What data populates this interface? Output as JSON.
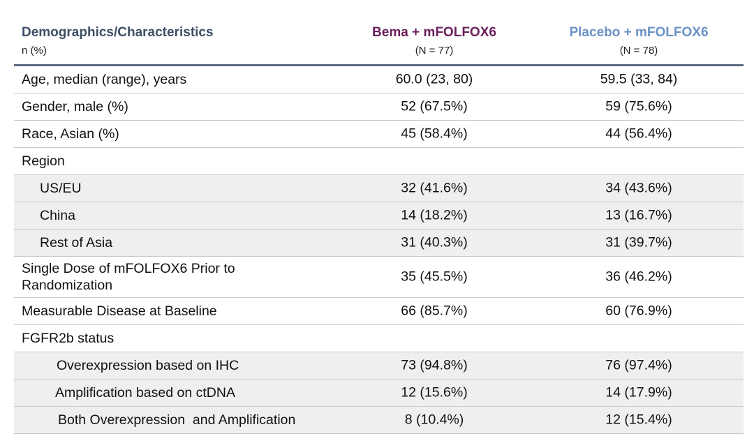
{
  "header": {
    "title": "Demographics/Characteristics",
    "subtitle": "n (%)",
    "col1_name": "Bema + mFOLFOX6",
    "col1_n": "(N = 77)",
    "col2_name": "Placebo + mFOLFOX6",
    "col2_n": "(N = 78)"
  },
  "colors": {
    "header_text": "#3d4f66",
    "bema_accent": "#6b1f5c",
    "placebo_accent": "#6a92c8",
    "header_rule": "#5b6b7e",
    "row_shade": "#efefef"
  },
  "rows": [
    {
      "label": "Age, median (range), years",
      "bema": "60.0 (23, 80)",
      "placebo": "59.5 (33, 84)"
    },
    {
      "label": "Gender, male (%)",
      "bema": "52 (67.5%)",
      "placebo": "59 (75.6%)"
    },
    {
      "label": "Race, Asian (%)",
      "bema": "45 (58.4%)",
      "placebo": "44 (56.4%)"
    },
    {
      "label": "Region",
      "bema": "",
      "placebo": ""
    },
    {
      "label": "US/EU",
      "bema": "32 (41.6%)",
      "placebo": "34 (43.6%)"
    },
    {
      "label": "China",
      "bema": "14 (18.2%)",
      "placebo": "13 (16.7%)"
    },
    {
      "label": "Rest of Asia",
      "bema": "31 (40.3%)",
      "placebo": "31 (39.7%)"
    },
    {
      "label_line1": "Single Dose of mFOLFOX6 Prior to",
      "label_line2": "Randomization",
      "bema": "35 (45.5%)",
      "placebo": "36 (46.2%)"
    },
    {
      "label": "Measurable Disease at Baseline",
      "bema": "66 (85.7%)",
      "placebo": "60 (76.9%)"
    },
    {
      "label": "FGFR2b status",
      "bema": "",
      "placebo": ""
    },
    {
      "label": "Overexpression based on IHC",
      "bema": "73 (94.8%)",
      "placebo": "76 (97.4%)"
    },
    {
      "label": "Amplification based on ctDNA",
      "bema": "12 (15.6%)",
      "placebo": "14 (17.9%)"
    },
    {
      "label": "Both Overexpression  and Amplification",
      "bema": "8 (10.4%)",
      "placebo": "12 (15.4%)"
    }
  ]
}
